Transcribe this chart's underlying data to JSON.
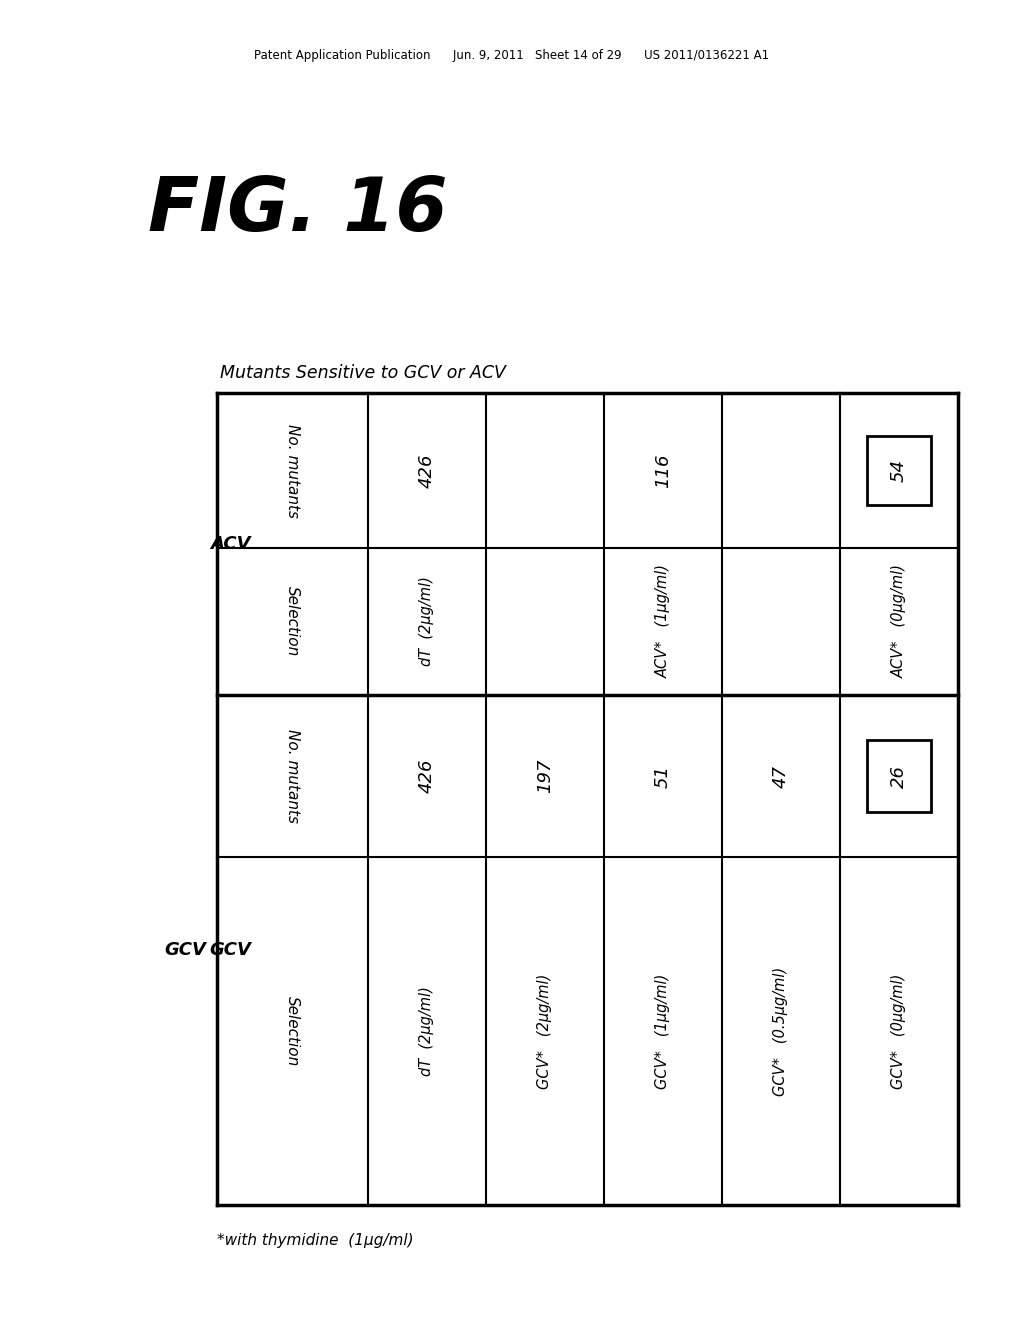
{
  "header_text": "Patent Application Publication      Jun. 9, 2011   Sheet 14 of 29      US 2011/0136221 A1",
  "fig_label": "FIG. 16",
  "table_title": "Mutants Sensitive to GCV or ACV",
  "gcv_label": "GCV",
  "acv_label": "ACV",
  "gcv_rows": [
    {
      "selection": "dT  (2μg/ml)",
      "mutants": "426"
    },
    {
      "selection": "GCV*   (2μg/ml)",
      "mutants": "197"
    },
    {
      "selection": "GCV*   (1μg/ml)",
      "mutants": "51"
    },
    {
      "selection": "GCV*   (0.5μg/ml)",
      "mutants": "47"
    },
    {
      "selection": "GCV*   (0μg/ml)",
      "mutants": "26",
      "boxed": true
    }
  ],
  "acv_rows": [
    {
      "selection": "dT  (2μg/ml)",
      "mutants": "426"
    },
    {
      "selection": "",
      "mutants": ""
    },
    {
      "selection": "ACV*   (1μg/ml)",
      "mutants": "116"
    },
    {
      "selection": "",
      "mutants": ""
    },
    {
      "selection": "ACV*   (0μg/ml)",
      "mutants": "54",
      "boxed": true
    }
  ],
  "footnote": "*with thymidine  (1μg/ml)",
  "bg_color": "#ffffff",
  "text_color": "#000000"
}
